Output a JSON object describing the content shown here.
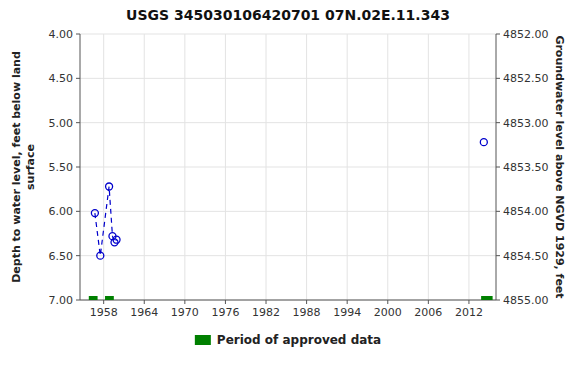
{
  "chart_data": {
    "type": "line",
    "title": "USGS 345030106420701 07N.02E.11.343",
    "y_label": "Depth to water level, feet below land\nsurface",
    "y2_label": "Groundwater level above NGVD 1929, feet",
    "xlim": [
      1954.5,
      2016
    ],
    "xticks": [
      1958,
      1964,
      1970,
      1976,
      1982,
      1988,
      1994,
      2000,
      2006,
      2012
    ],
    "ylim": [
      7.0,
      4.0
    ],
    "yticks": [
      {
        "value": 4.0,
        "label": "4.00"
      },
      {
        "value": 4.5,
        "label": "4.50"
      },
      {
        "value": 5.0,
        "label": "5.00"
      },
      {
        "value": 5.5,
        "label": "5.50"
      },
      {
        "value": 6.0,
        "label": "6.00"
      },
      {
        "value": 6.5,
        "label": "6.50"
      },
      {
        "value": 7.0,
        "label": "7.00"
      }
    ],
    "y2lim": [
      4855.0,
      4852.0
    ],
    "y2ticks": [
      {
        "value": 4855.0,
        "label": "4855.00"
      },
      {
        "value": 4854.5,
        "label": "4854.50"
      },
      {
        "value": 4854.0,
        "label": "4854.00"
      },
      {
        "value": 4853.5,
        "label": "4853.50"
      },
      {
        "value": 4853.0,
        "label": "4853.00"
      },
      {
        "value": 4852.5,
        "label": "4852.50"
      },
      {
        "value": 4852.0,
        "label": "4852.00"
      }
    ],
    "grid": true,
    "legend": "bottom",
    "series": [
      {
        "type": "line",
        "color": "#0000cc",
        "marker": "circle",
        "line_style": "dashed",
        "x": [
          1956.7,
          1957.5,
          1958.8,
          1959.3,
          1959.6,
          1959.9
        ],
        "values": [
          6.02,
          6.5,
          5.72,
          6.28,
          6.35,
          6.32
        ]
      },
      {
        "type": "line",
        "color": "#0000cc",
        "marker": "circle",
        "line_style": "none",
        "x": [
          2014.2
        ],
        "values": [
          5.22
        ]
      },
      {
        "type": "range",
        "name": "Period of approved data",
        "color": "#008000",
        "x_start": [
          1955.8,
          1958.2,
          2013.8
        ],
        "x_end": [
          1957.1,
          1959.5,
          2015.5
        ],
        "values": [
          7.0,
          7.0,
          7.0
        ]
      }
    ]
  }
}
